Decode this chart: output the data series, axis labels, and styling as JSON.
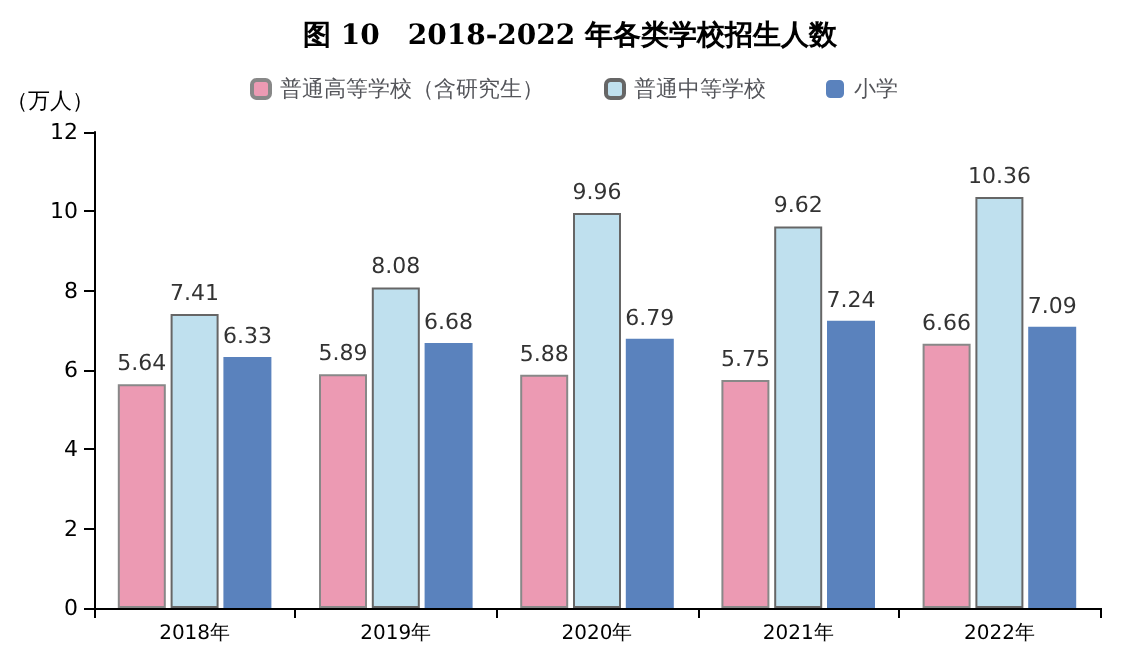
{
  "chart_data": {
    "type": "bar",
    "title": "图 10　2018-2022 年各类学校招生人数",
    "ylabel": "（万人）",
    "categories": [
      "2018年",
      "2019年",
      "2020年",
      "2021年",
      "2022年"
    ],
    "series": [
      {
        "name": "普通高等学校（含研究生）",
        "color": "#ec9ab3",
        "values": [
          5.64,
          5.89,
          5.88,
          5.75,
          6.66
        ]
      },
      {
        "name": "普通中等学校",
        "color": "#bfe0ee",
        "values": [
          7.41,
          8.08,
          9.96,
          9.62,
          10.36
        ]
      },
      {
        "name": "小学",
        "color": "#5a82bd",
        "values": [
          6.33,
          6.68,
          6.79,
          7.24,
          7.09
        ]
      }
    ],
    "ylim": [
      0,
      12
    ],
    "yticks": [
      0,
      2,
      4,
      6,
      8,
      10,
      12
    ],
    "grid": false,
    "legend": "top",
    "data_labels": true
  }
}
